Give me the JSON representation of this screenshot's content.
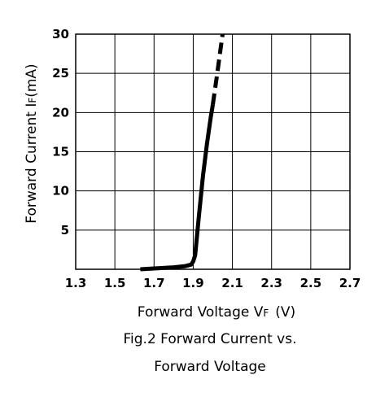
{
  "chart_data": {
    "type": "line",
    "title": "",
    "caption_lines": [
      "Fig.2 Forward Current vs.",
      "Forward Voltage"
    ],
    "xlabel": "Forward Voltage V",
    "xlabel_sub": "F",
    "xlabel_unit": "(V)",
    "ylabel": "Forward Current I",
    "ylabel_sub": "F",
    "ylabel_unit": "(mA)",
    "xlim": [
      1.3,
      2.7
    ],
    "ylim": [
      0,
      30
    ],
    "x_ticks": [
      "1.3",
      "1.5",
      "1.7",
      "1.9",
      "2.1",
      "2.3",
      "2.5",
      "2.7"
    ],
    "y_ticks": [
      "5",
      "10",
      "15",
      "20",
      "25",
      "30"
    ],
    "grid": true,
    "series": [
      {
        "line_style": "solid",
        "color": "#000000",
        "x": [
          1.63,
          1.7,
          1.8,
          1.86,
          1.89,
          1.9,
          1.91,
          1.93,
          1.95,
          1.97,
          1.99,
          2.0
        ],
        "y": [
          0.0,
          0.1,
          0.25,
          0.4,
          0.6,
          1.0,
          1.8,
          7.0,
          12.0,
          16.0,
          19.5,
          21.0
        ]
      },
      {
        "line_style": "dashed",
        "color": "#000000",
        "x": [
          2.0,
          2.02,
          2.05
        ],
        "y": [
          21.0,
          24.5,
          30.0
        ]
      }
    ]
  }
}
